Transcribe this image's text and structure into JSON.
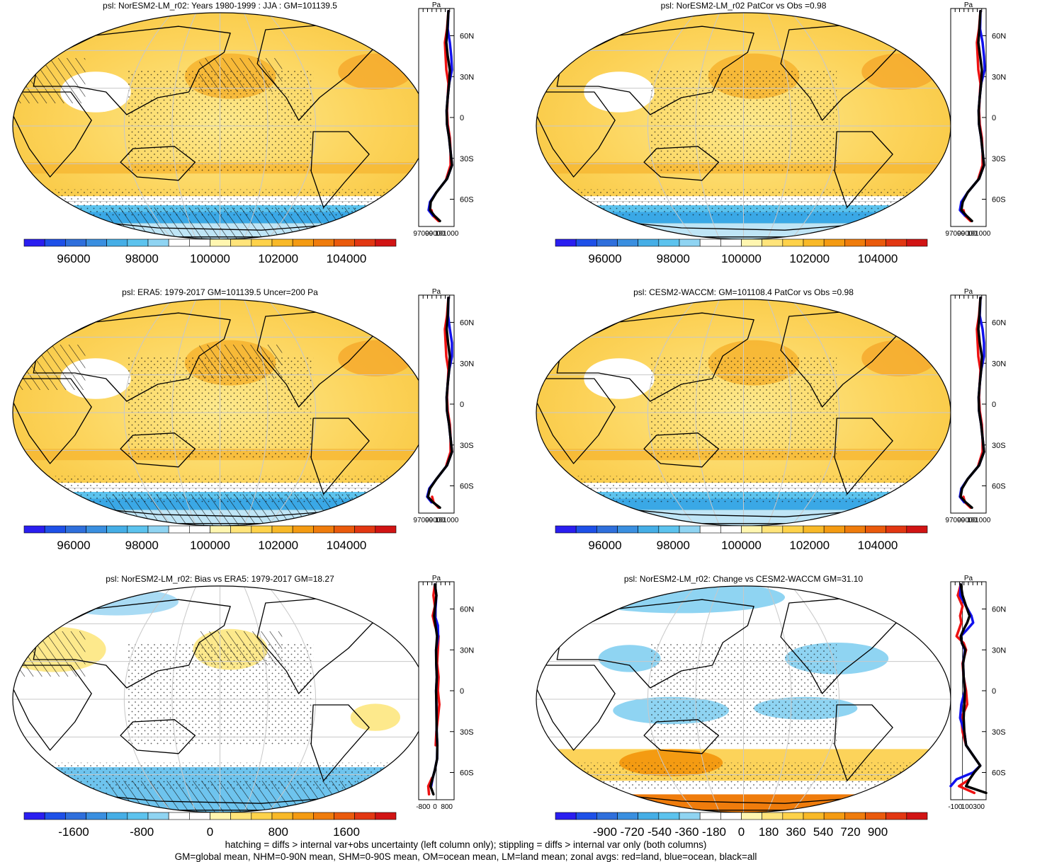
{
  "colors": {
    "land_zonal": "#ee1111",
    "ocean_zonal": "#1111ee",
    "all_zonal": "#000000",
    "grid": "#c8c8c8",
    "abs_palette": [
      "#2a1ef0",
      "#1e50e8",
      "#2f6fdc",
      "#3a8fe0",
      "#45aee6",
      "#5cc3ee",
      "#8fd4f2",
      "#ffffff",
      "#ffffff",
      "#fff6b0",
      "#ffe47a",
      "#fed24a",
      "#f8b928",
      "#f49b12",
      "#ef7c0c",
      "#ea5a0c",
      "#e23712",
      "#d11414"
    ],
    "diff_palette": [
      "#2a1ef0",
      "#1e50e8",
      "#2f6fdc",
      "#3a8fe0",
      "#45aee6",
      "#5cc3ee",
      "#8fd4f2",
      "#ffffff",
      "#ffffff",
      "#fff6b0",
      "#ffe47a",
      "#fed24a",
      "#f8b928",
      "#f49b12",
      "#ef7c0c",
      "#ea5a0c",
      "#e23712",
      "#d11414"
    ]
  },
  "panels": [
    {
      "id": "p1",
      "title": "psl: NorESM2-LM_r02: Years 1980-1999 : JJA : GM=101139.5",
      "colorbar_labels": [
        "96000",
        "98000",
        "100000",
        "102000",
        "104000"
      ],
      "zonal_unit": "Pa",
      "zonal_xticks": [
        "97000",
        "99000",
        "101000"
      ],
      "lat_labels": [
        "60N",
        "30N",
        "0",
        "30S",
        "60S"
      ]
    },
    {
      "id": "p2",
      "title": "psl: NorESM2-LM_r02 PatCor vs Obs =0.98",
      "colorbar_labels": [
        "96000",
        "98000",
        "100000",
        "102000",
        "104000"
      ],
      "zonal_unit": "Pa",
      "zonal_xticks": [
        "97000",
        "99000",
        "101000"
      ],
      "lat_labels": [
        "60N",
        "30N",
        "0",
        "30S",
        "60S"
      ]
    },
    {
      "id": "p3",
      "title": "psl: ERA5: 1979-2017 GM=101139.5 Uncer=200 Pa",
      "colorbar_labels": [
        "96000",
        "98000",
        "100000",
        "102000",
        "104000"
      ],
      "zonal_unit": "Pa",
      "zonal_xticks": [
        "97000",
        "99000",
        "101000"
      ],
      "lat_labels": [
        "60N",
        "30N",
        "0",
        "30S",
        "60S"
      ]
    },
    {
      "id": "p4",
      "title": "psl: CESM2-WACCM: GM=101108.4 PatCor vs Obs =0.98",
      "colorbar_labels": [
        "96000",
        "98000",
        "100000",
        "102000",
        "104000"
      ],
      "zonal_unit": "Pa",
      "zonal_xticks": [
        "97000",
        "99000",
        "101000"
      ],
      "lat_labels": [
        "60N",
        "30N",
        "0",
        "30S",
        "60S"
      ]
    },
    {
      "id": "p5",
      "title": "psl: NorESM2-LM_r02: Bias vs ERA5: 1979-2017 GM=18.27",
      "colorbar_labels": [
        "-1600",
        "-800",
        "0",
        "800",
        "1600"
      ],
      "zonal_unit": "Pa",
      "zonal_xticks": [
        "-800",
        "0",
        "800"
      ],
      "lat_labels": [
        "60N",
        "30N",
        "0",
        "30S",
        "60S"
      ]
    },
    {
      "id": "p6",
      "title": "psl: NorESM2-LM_r02: Change vs CESM2-WACCM GM=31.10",
      "colorbar_labels": [
        "-900",
        "-720",
        "-540",
        "-360",
        "-180",
        "0",
        "180",
        "360",
        "540",
        "720",
        "900"
      ],
      "zonal_unit": "Pa",
      "zonal_xticks": [
        "-100",
        "100",
        "300"
      ],
      "lat_labels": [
        "60N",
        "30N",
        "0",
        "30S",
        "60S"
      ]
    }
  ],
  "chart_data": {
    "type": "map-panels-with-zonal-profiles",
    "variable": "psl",
    "lat_ticks": [
      60,
      30,
      0,
      -30,
      -60
    ],
    "zonal_profiles": [
      {
        "panel": "p1",
        "xlim": [
          97000,
          102000
        ],
        "lat": [
          78,
          65,
          55,
          45,
          35,
          25,
          15,
          5,
          -5,
          -15,
          -25,
          -35,
          -45,
          -55,
          -62,
          -68,
          -72,
          -76
        ],
        "all": [
          101200,
          101050,
          100900,
          101100,
          101400,
          101300,
          101100,
          100950,
          101000,
          101300,
          101500,
          101700,
          101000,
          99500,
          98700,
          98600,
          99200,
          100000
        ],
        "land": [
          101200,
          101000,
          100700,
          100800,
          100900,
          101200,
          101100,
          101000,
          101100,
          101400,
          101500,
          101500,
          100900,
          null,
          null,
          98800,
          99000,
          99800
        ],
        "ocean": [
          101200,
          101100,
          101400,
          101600,
          101700,
          101300,
          101100,
          100950,
          101000,
          101300,
          101500,
          101700,
          101000,
          99500,
          98600,
          98400,
          99000,
          null
        ]
      },
      {
        "panel": "p2",
        "xlim": [
          97000,
          102000
        ],
        "lat": [
          78,
          65,
          55,
          45,
          35,
          25,
          15,
          5,
          -5,
          -15,
          -25,
          -35,
          -45,
          -55,
          -62,
          -68,
          -72,
          -76
        ],
        "all": [
          101200,
          101050,
          100900,
          101150,
          101400,
          101300,
          101100,
          100950,
          101000,
          101300,
          101500,
          101700,
          101000,
          99400,
          98700,
          98500,
          99200,
          100000
        ],
        "land": [
          101200,
          101000,
          100700,
          100800,
          100900,
          101200,
          101100,
          101000,
          101100,
          101400,
          101500,
          101500,
          100900,
          null,
          null,
          98800,
          99000,
          99800
        ],
        "ocean": [
          101200,
          101150,
          101500,
          101700,
          101800,
          101300,
          101100,
          100950,
          101000,
          101300,
          101500,
          101700,
          101000,
          99400,
          98500,
          98300,
          99000,
          null
        ]
      },
      {
        "panel": "p3",
        "xlim": [
          97000,
          102000
        ],
        "lat": [
          78,
          65,
          55,
          45,
          35,
          25,
          15,
          5,
          -5,
          -15,
          -25,
          -35,
          -45,
          -55,
          -62,
          -68,
          -72,
          -76
        ],
        "all": [
          101200,
          101100,
          100950,
          101150,
          101400,
          101300,
          101100,
          100950,
          101000,
          101300,
          101500,
          101700,
          101000,
          99500,
          98600,
          98300,
          99000,
          100000
        ],
        "land": [
          101200,
          101000,
          100700,
          100800,
          100900,
          101200,
          101100,
          101000,
          101100,
          101400,
          101500,
          101500,
          100900,
          null,
          null,
          98900,
          99100,
          99800
        ],
        "ocean": [
          101200,
          101150,
          101400,
          101700,
          101700,
          101300,
          101100,
          100950,
          101000,
          101300,
          101500,
          101700,
          101000,
          99500,
          98500,
          98200,
          98800,
          null
        ]
      },
      {
        "panel": "p4",
        "xlim": [
          97000,
          102000
        ],
        "lat": [
          78,
          65,
          55,
          45,
          35,
          25,
          15,
          5,
          -5,
          -15,
          -25,
          -35,
          -45,
          -55,
          -62,
          -68,
          -72,
          -76
        ],
        "all": [
          101200,
          101050,
          100900,
          101100,
          101400,
          101300,
          101100,
          100950,
          101000,
          101300,
          101500,
          101700,
          101000,
          99400,
          98600,
          98400,
          99100,
          100000
        ],
        "land": [
          101200,
          101000,
          100700,
          100800,
          100900,
          101200,
          101100,
          101000,
          101100,
          101400,
          101500,
          101500,
          100900,
          null,
          null,
          98800,
          99000,
          99800
        ],
        "ocean": [
          101200,
          101100,
          101500,
          101700,
          101700,
          101300,
          101100,
          100950,
          101000,
          101300,
          101500,
          101700,
          101000,
          99400,
          98500,
          98300,
          98900,
          null
        ]
      },
      {
        "panel": "p5",
        "xlim": [
          -1200,
          1200
        ],
        "lat": [
          78,
          70,
          62,
          55,
          48,
          40,
          30,
          20,
          10,
          0,
          -10,
          -20,
          -30,
          -40,
          -50,
          -58,
          -64,
          -70,
          -76
        ],
        "all": [
          -100,
          0,
          -80,
          -150,
          -60,
          50,
          -20,
          -10,
          30,
          -20,
          0,
          10,
          20,
          60,
          50,
          -100,
          -250,
          -400,
          -200
        ],
        "land": [
          -100,
          -200,
          -100,
          -250,
          -100,
          150,
          100,
          50,
          150,
          100,
          200,
          100,
          0,
          -50,
          null,
          null,
          -300,
          -550,
          -500
        ],
        "ocean": [
          -100,
          0,
          -50,
          -100,
          100,
          120,
          -20,
          -10,
          30,
          -20,
          0,
          10,
          20,
          60,
          50,
          -100,
          -250,
          -350,
          null
        ]
      },
      {
        "panel": "p6",
        "xlim": [
          -200,
          400
        ],
        "lat": [
          78,
          70,
          62,
          55,
          50,
          45,
          40,
          35,
          30,
          20,
          10,
          0,
          -10,
          -20,
          -30,
          -40,
          -50,
          -55,
          -60,
          -65,
          -70,
          -75
        ],
        "all": [
          -30,
          0,
          60,
          120,
          80,
          20,
          -30,
          -10,
          50,
          10,
          20,
          40,
          30,
          20,
          30,
          60,
          220,
          300,
          200,
          120,
          60,
          400
        ],
        "land": [
          -30,
          -80,
          0,
          -40,
          -20,
          -60,
          -100,
          20,
          60,
          0,
          20,
          60,
          80,
          -20,
          0,
          60,
          null,
          null,
          null,
          120,
          -60,
          200
        ],
        "ocean": [
          -30,
          -40,
          60,
          150,
          180,
          80,
          -30,
          -10,
          40,
          10,
          20,
          40,
          -20,
          -40,
          30,
          60,
          220,
          300,
          180,
          -100,
          -220,
          null
        ]
      }
    ]
  },
  "footer": {
    "line1": "hatching = diffs > internal var+obs uncertainty (left column only); stippling = diffs > internal var only (both columns)",
    "line2": "GM=global mean, NHM=0-90N mean, SHM=0-90S mean, OM=ocean mean, LM=land mean; zonal avgs: red=land, blue=ocean, black=all"
  }
}
